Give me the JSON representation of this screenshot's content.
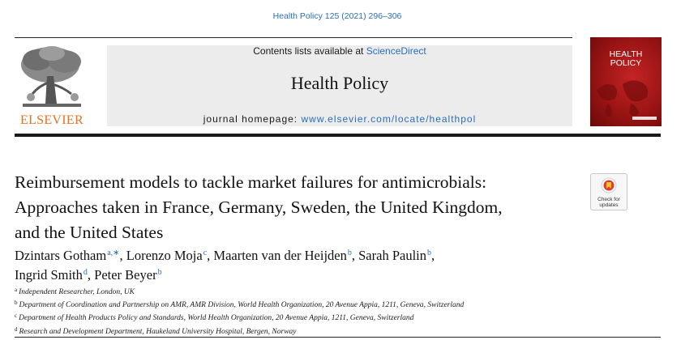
{
  "header": {
    "citation": "Health Policy 125 (2021) 296–306",
    "contents_prefix": "Contents lists available at",
    "contents_link": "ScienceDirect",
    "journal_title": "Health Policy",
    "homepage_label": "journal homepage:",
    "homepage_url": "www.elsevier.com/locate/healthpol",
    "publisher": "ELSEVIER",
    "cover_title": [
      "HEALTH",
      "POLICY"
    ]
  },
  "colors": {
    "link": "#2a6ebb",
    "publisher_orange": "#e8701e",
    "cover_red": "#9a1414",
    "masthead_gray": "#ececec"
  },
  "article": {
    "title_lines": [
      "Reimbursement models to tackle market failures for antimicrobials:",
      "Approaches taken in France, Germany, Sweden, the United Kingdom,",
      "and the United States"
    ],
    "check_updates": [
      "Check for",
      "updates"
    ],
    "authors": [
      {
        "name": "Dzintars Gotham",
        "sup": "a,∗",
        "sep": ", "
      },
      {
        "name": "Lorenzo Moja",
        "sup": "c",
        "sep": ", "
      },
      {
        "name": "Maarten van der Heijden",
        "sup": "b",
        "sep": ", "
      },
      {
        "name": "Sarah Paulin",
        "sup": "b",
        "sep": ","
      },
      {
        "name": "Ingrid Smith",
        "sup": "d",
        "sep": ", "
      },
      {
        "name": "Peter Beyer",
        "sup": "b",
        "sep": ""
      }
    ],
    "affiliations": [
      {
        "key": "a",
        "text": "Independent Researcher, London, UK"
      },
      {
        "key": "b",
        "text": "Department of Coordination and Partnership on AMR, AMR Division, World Health Organization, 20 Avenue Appia, 1211, Geneva, Switzerland"
      },
      {
        "key": "c",
        "text": "Department of Health Products Policy and Standards, World Health Organization, 20 Avenue Appia, 1211, Geneva, Switzerland"
      },
      {
        "key": "d",
        "text": "Research and Development Department, Haukeland University Hospital, Bergen, Norway"
      }
    ]
  }
}
